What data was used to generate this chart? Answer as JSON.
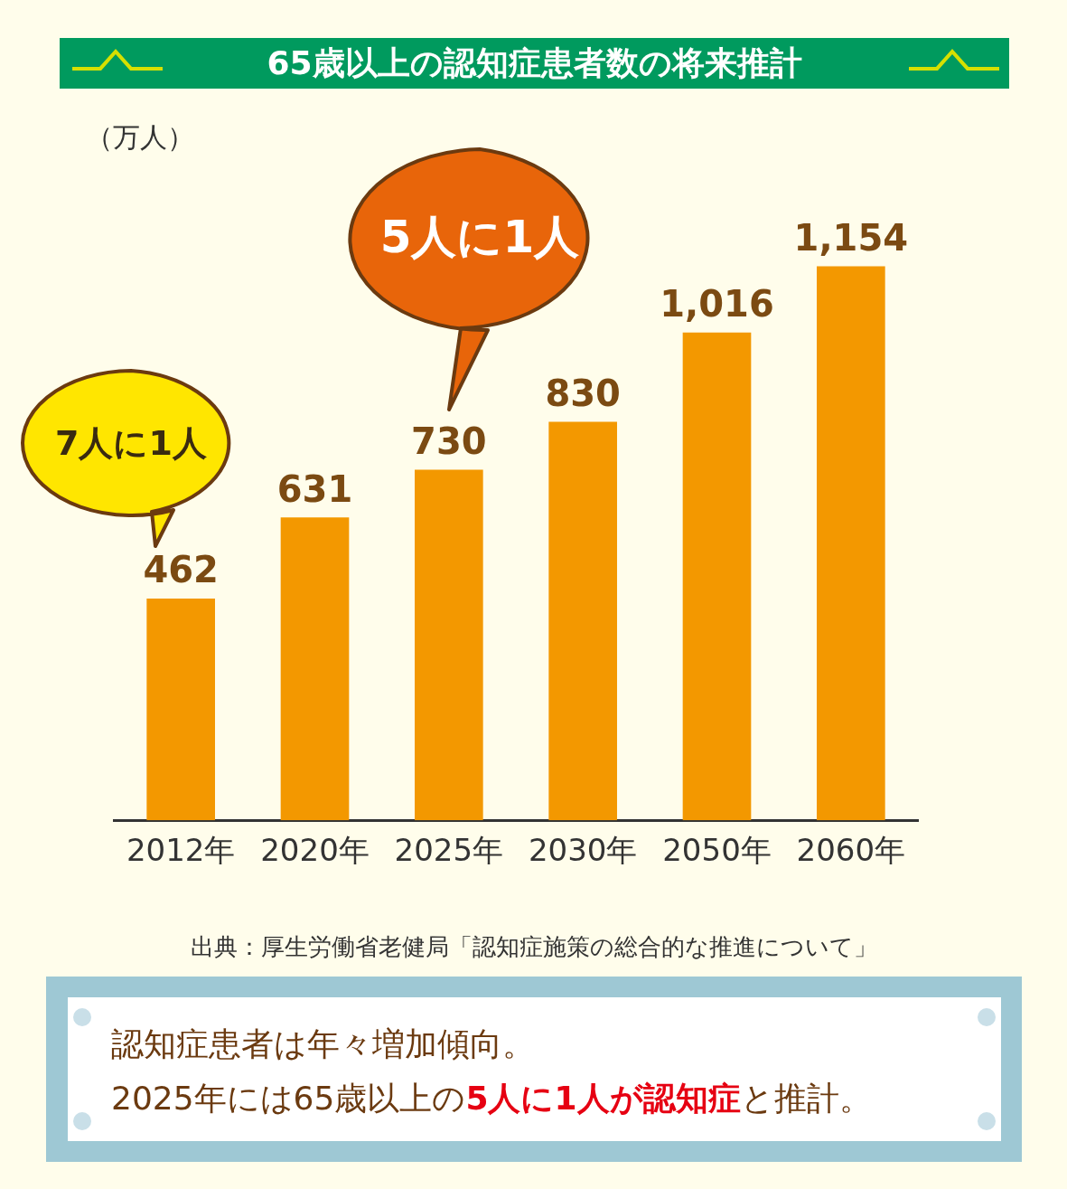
{
  "chart_data": {
    "type": "bar",
    "title": "65歳以上の認知症患者数の将来推計",
    "ylabel": "（万人）",
    "categories": [
      "2012年",
      "2020年",
      "2025年",
      "2030年",
      "2050年",
      "2060年"
    ],
    "values": [
      462,
      631,
      730,
      830,
      1016,
      1154
    ],
    "value_labels": [
      "462",
      "631",
      "730",
      "830",
      "1,016",
      "1,154"
    ],
    "color": "#f39800",
    "grid": false,
    "legend": false,
    "tick_labels": "x",
    "annotations": [
      "7人に1人",
      "5人に1人",
      "出典：厚生労働省老健局「認知症施策の総合的な推進について」",
      "認知症患者は年々増加傾向。",
      "2025年には65歳以上の",
      "5人に1人が認知症",
      "と推計。"
    ]
  }
}
